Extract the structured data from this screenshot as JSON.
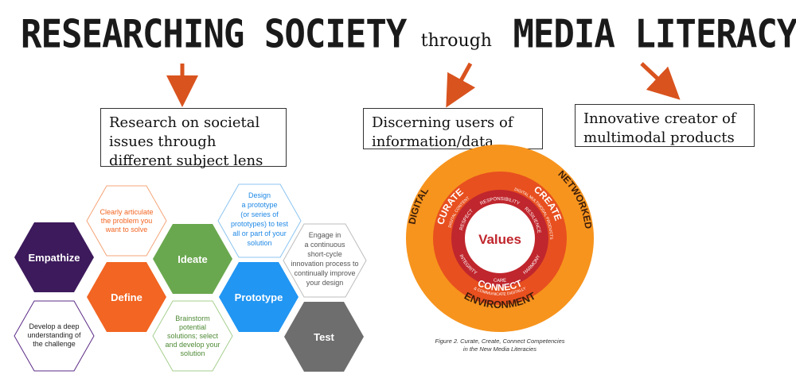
{
  "title": {
    "part1": "RESEARCHING SOCIETY",
    "part2": "through",
    "part3": "MEDIA LITERACY"
  },
  "boxes": {
    "research": [
      "Research on societal",
      "issues through",
      "different subject lens"
    ],
    "discerning": [
      "Discerning users of",
      "information/data"
    ],
    "innovative": [
      "Innovative creator of",
      "multimodal products"
    ]
  },
  "design_thinking": {
    "empathize": "Empathize",
    "define": "Define",
    "ideate": "Ideate",
    "prototype": "Prototype",
    "test": "Test",
    "define_note": [
      "Clearly articulate",
      "the problem you",
      "want to solve"
    ],
    "empathize_note": [
      "Develop a deep",
      "understanding of",
      "the challenge"
    ],
    "ideate_note": [
      "Brainstorm",
      "potential",
      "solutions; select",
      "and develop your",
      "solution"
    ],
    "prototype_note": [
      "Design",
      "a prototype",
      "(or series of",
      "prototypes) to test",
      "all or part of your",
      "solution"
    ],
    "test_note": [
      "Engage in",
      "a continuous",
      "short-cycle",
      "innovation process to",
      "continually improve",
      "your design"
    ],
    "colors": {
      "empathize": "#3d1a5c",
      "define": "#f26522",
      "ideate": "#6aa84f",
      "prototype": "#2196f3",
      "test": "#6e6e6e"
    }
  },
  "media_circle": {
    "center": "Values",
    "outer": {
      "digital": "DIGITAL",
      "networked": "NETWORKED",
      "environment": "ENVIRONMENT"
    },
    "middle": {
      "curate": "CURATE",
      "curate_sub": "DIGITAL CONTENT",
      "create": "CREATE",
      "create_sub": "DIGITAL MULTIMODAL PRODUCTS",
      "connect": "CONNECT",
      "connect_sub": "& COMMUNICATE DIGITALLY"
    },
    "inner": {
      "respect": "RESPECT",
      "responsibility": "RESPONSIBILITY",
      "resilience": "RESILIENCE",
      "integrity": "INTEGRITY",
      "care": "CARE",
      "harmony": "HARMONY"
    },
    "caption": [
      "Figure 2. Curate, Create, Connect Competencies",
      "in the New Media Literacies"
    ],
    "colors": {
      "outer": "#f7941d",
      "middle": "#e8501f",
      "inner": "#c0262d"
    }
  },
  "accent": {
    "arrow": "#d9531e"
  }
}
